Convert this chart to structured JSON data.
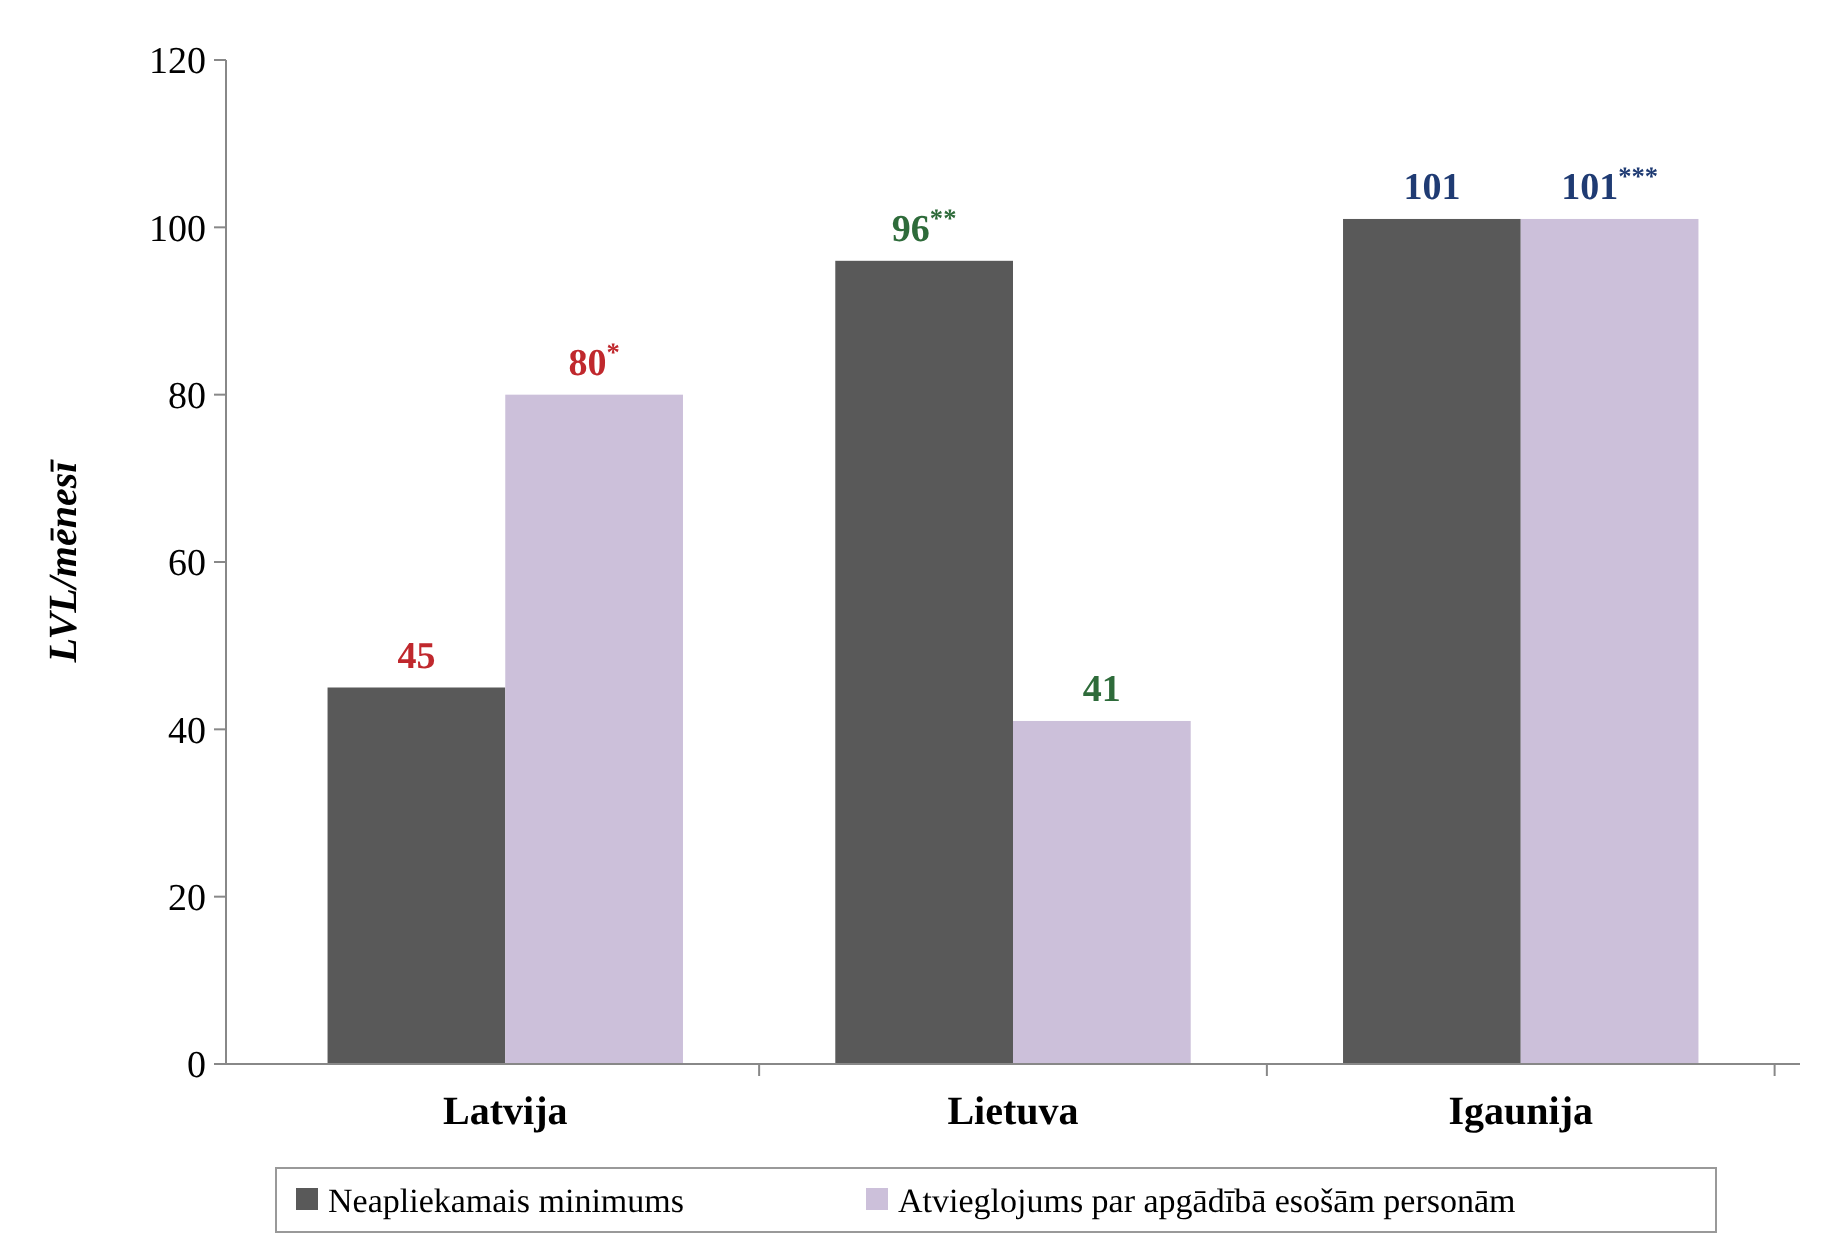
{
  "chart_data": {
    "type": "bar",
    "ylabel": "LVL/mēnesī",
    "categories": [
      "Latvija",
      "Lietuva",
      "Igaunija"
    ],
    "series": [
      {
        "name": "Neapliekamais minimums",
        "color": "#595959",
        "values": [
          45,
          96,
          101
        ],
        "value_labels": [
          "45",
          "96$^{**}$",
          "101"
        ]
      },
      {
        "name": "Atvieglojums par apgādībā esošām personām",
        "color": "#ccc0da",
        "values": [
          80,
          41,
          101
        ],
        "value_labels": [
          "80$^{*}$",
          "41",
          "101$^{***}$"
        ]
      }
    ],
    "ylim": [
      0,
      120
    ],
    "yticks": [
      0,
      20,
      40,
      60,
      80,
      100,
      120
    ],
    "grid": false,
    "legend": "bottom"
  }
}
